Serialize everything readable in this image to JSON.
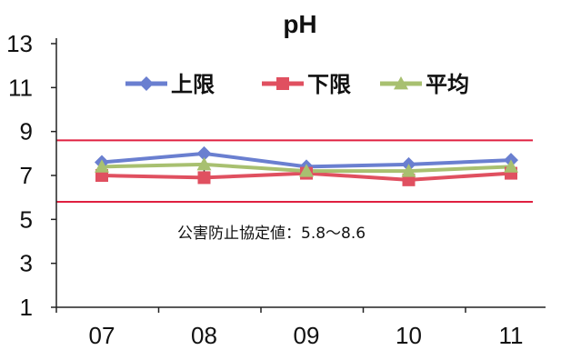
{
  "chart_data": {
    "type": "line",
    "title": "pH",
    "xlabel": "",
    "ylabel": "",
    "categories": [
      "07",
      "08",
      "09",
      "10",
      "11"
    ],
    "ylim": [
      1,
      13
    ],
    "yticks": [
      "1",
      "3",
      "5",
      "7",
      "9",
      "11",
      "13"
    ],
    "legend_position": "top",
    "series": [
      {
        "name": "上限",
        "values": [
          7.6,
          8.0,
          7.4,
          7.5,
          7.7
        ],
        "color": "#6a7fd0",
        "marker": "diamond"
      },
      {
        "name": "下限",
        "values": [
          7.0,
          6.9,
          7.1,
          6.8,
          7.1
        ],
        "color": "#e05060",
        "marker": "square"
      },
      {
        "name": "平均",
        "values": [
          7.4,
          7.5,
          7.2,
          7.2,
          7.4
        ],
        "color": "#a8c070",
        "marker": "triangle"
      }
    ],
    "reference_lines": [
      {
        "value": 8.6,
        "color": "#e02040"
      },
      {
        "value": 5.8,
        "color": "#e02040"
      }
    ],
    "annotation": "公害防止協定値：5.8～8.6"
  }
}
